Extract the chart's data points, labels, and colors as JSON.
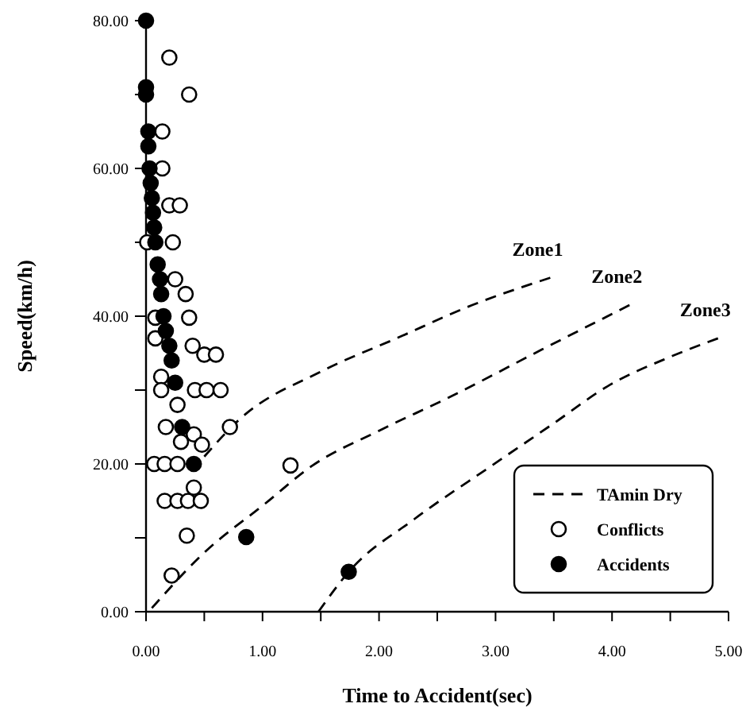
{
  "chart_data": {
    "type": "scatter",
    "xlabel": "Time to Accident(sec)",
    "ylabel": "Speed(km/h)",
    "xlim": [
      0,
      5
    ],
    "ylim": [
      0,
      80
    ],
    "xticks": [
      {
        "value": 0,
        "label": "0.00"
      },
      {
        "value": 0.5,
        "label": null
      },
      {
        "value": 1,
        "label": "1.00"
      },
      {
        "value": 1.5,
        "label": null
      },
      {
        "value": 2,
        "label": "2.00"
      },
      {
        "value": 2.5,
        "label": null
      },
      {
        "value": 3,
        "label": "3.00"
      },
      {
        "value": 3.5,
        "label": null
      },
      {
        "value": 4,
        "label": "4.00"
      },
      {
        "value": 4.5,
        "label": null
      },
      {
        "value": 5,
        "label": "5.00"
      }
    ],
    "yticks": [
      {
        "value": 0,
        "label": "0.00"
      },
      {
        "value": 10,
        "label": null
      },
      {
        "value": 20,
        "label": "20.00"
      },
      {
        "value": 30,
        "label": null
      },
      {
        "value": 40,
        "label": "40.00"
      },
      {
        "value": 50,
        "label": null
      },
      {
        "value": 60,
        "label": "60.00"
      },
      {
        "value": 70,
        "label": null
      },
      {
        "value": 80,
        "label": "80.00"
      }
    ],
    "grid": false,
    "legend": "bottom right",
    "marker": "circle",
    "annotations": [
      {
        "text": "Zone1",
        "x": 3.47,
        "y": 45.2
      },
      {
        "text": "Zone2",
        "x": 4.15,
        "y": 41.5
      },
      {
        "text": "Zone3",
        "x": 4.91,
        "y": 37
      }
    ],
    "series": [
      {
        "name": "TAmin Dry",
        "type": "line",
        "line_style": "dashed",
        "marker": "none",
        "color": "#000000",
        "x": [
          0.5,
          0.8,
          1.5,
          2.15,
          2.8,
          3.47
        ],
        "values": [
          21,
          26,
          32.5,
          37,
          41.5,
          45.2
        ]
      },
      {
        "type": "line",
        "line_style": "dashed",
        "marker": "none",
        "color": "#000000",
        "x": [
          0.05,
          0.5,
          1.02,
          1.43,
          2.0,
          2.6,
          3.4,
          4.15
        ],
        "values": [
          0.5,
          8,
          14.6,
          19.8,
          24.5,
          29,
          35.5,
          41.5
        ]
      },
      {
        "type": "line",
        "line_style": "dashed",
        "marker": "none",
        "color": "#000000",
        "x": [
          1.48,
          1.74,
          2.3,
          2.97,
          3.5,
          3.96,
          4.5,
          4.91
        ],
        "values": [
          0,
          5.4,
          12.5,
          19.8,
          25.5,
          30.5,
          34.5,
          37
        ]
      },
      {
        "name": "Conflicts",
        "color": "#ffffff",
        "x": [
          0.2,
          0.37,
          0.14,
          0.14,
          0.2,
          0.29,
          0.01,
          0.23,
          0.25,
          0.34,
          0.08,
          0.37,
          0.08,
          0.4,
          0.5,
          0.6,
          0.13,
          0.13,
          0.42,
          0.52,
          0.64,
          0.27,
          0.17,
          0.72,
          0.3,
          0.41,
          0.48,
          0.07,
          0.16,
          0.27,
          0.16,
          0.27,
          0.36,
          0.47,
          0.41,
          0.35,
          0.22,
          1.24
        ],
        "values": [
          75,
          70,
          65,
          60,
          55,
          55,
          50,
          50,
          45,
          43,
          39.8,
          39.8,
          37,
          36,
          34.8,
          34.8,
          31.8,
          30,
          30,
          30,
          30,
          28,
          25,
          25,
          23,
          24,
          22.6,
          20,
          20,
          20,
          15,
          15,
          15,
          15,
          16.8,
          10.3,
          4.9,
          19.8
        ]
      },
      {
        "name": "Accidents",
        "color": "#000000",
        "x": [
          0,
          0,
          0,
          0.02,
          0.02,
          0.03,
          0.04,
          0.05,
          0.06,
          0.07,
          0.08,
          0.1,
          0.12,
          0.13,
          0.15,
          0.17,
          0.2,
          0.22,
          0.25,
          0.31,
          0.41,
          0.86,
          1.74
        ],
        "values": [
          80,
          71,
          70,
          65,
          63,
          60,
          58,
          56,
          54,
          52,
          50,
          47,
          45,
          43,
          40,
          38,
          36,
          34,
          31,
          25,
          20,
          10.1,
          5.4
        ]
      }
    ]
  }
}
